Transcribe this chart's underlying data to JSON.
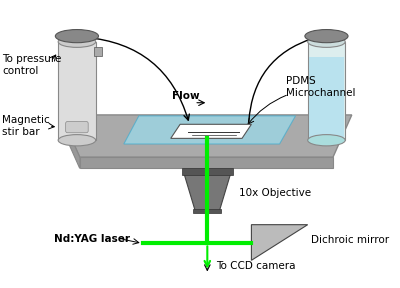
{
  "bg_color": "#ffffff",
  "platform_color": "#aaaaaa",
  "platform_edge_color": "#888888",
  "tube_cap_color": "#888888",
  "tube_liquid_color": "#aaddee",
  "objective_color": "#777777",
  "laser_color": "#00ee00",
  "text_color": "#000000",
  "label_flow": "Flow",
  "label_pdms": "PDMS\nMicrochannel",
  "label_pressure": "To pressure\ncontrol",
  "label_magnetic": "Magnetic\nstir bar",
  "label_objective": "10x Objective",
  "label_laser": "Nd:YAG laser",
  "label_mirror": "Dichroic mirror",
  "label_camera": "To CCD camera"
}
